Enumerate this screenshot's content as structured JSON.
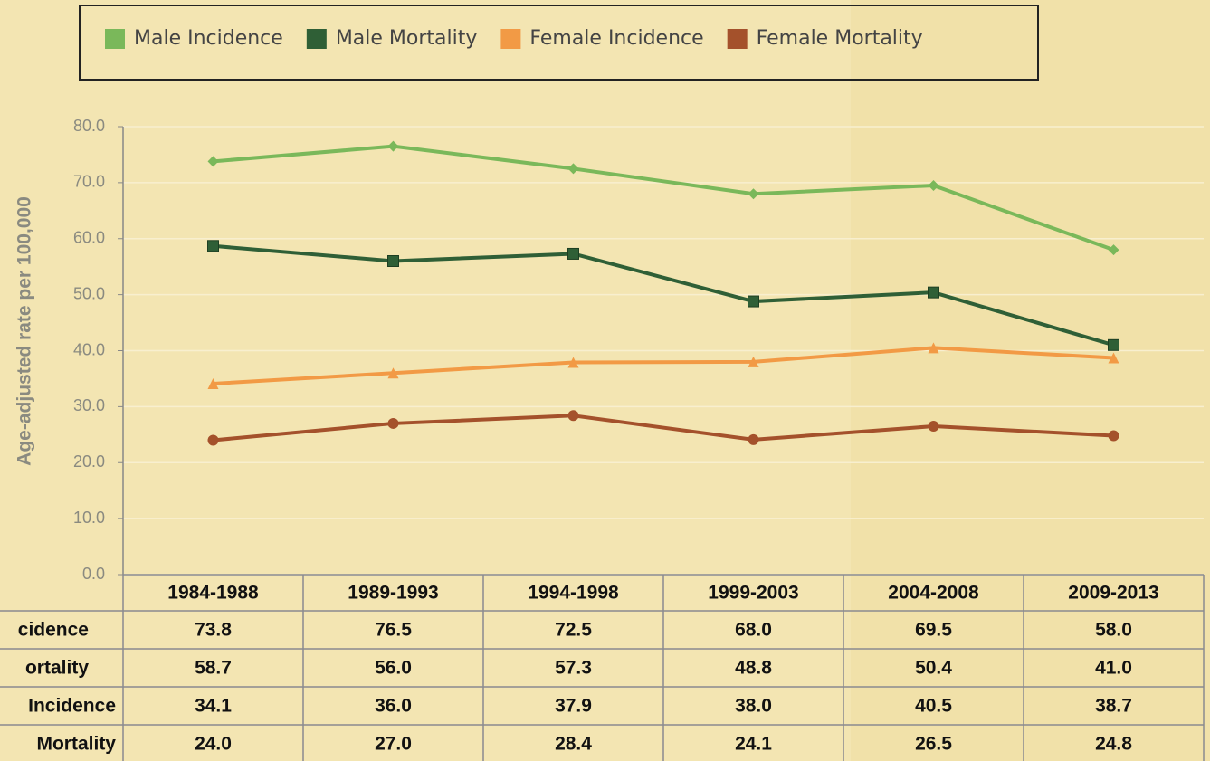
{
  "chart_data": {
    "type": "line",
    "y_label": "Age-adjusted rate per 100,000",
    "categories": [
      "1984-1988",
      "1989-1993",
      "1994-1998",
      "1999-2003",
      "2004-2008",
      "2009-2013"
    ],
    "ylim": [
      0,
      80
    ],
    "yticks": [
      {
        "value": 0,
        "label": "0.0"
      },
      {
        "value": 10,
        "label": "10.0"
      },
      {
        "value": 20,
        "label": "20.0"
      },
      {
        "value": 30,
        "label": "30.0"
      },
      {
        "value": 40,
        "label": "40.0"
      },
      {
        "value": 50,
        "label": "50.0"
      },
      {
        "value": 60,
        "label": "60.0"
      },
      {
        "value": 70,
        "label": "70.0"
      },
      {
        "value": 80,
        "label": "80.0"
      }
    ],
    "grid": true,
    "series": [
      {
        "name": "Male Incidence",
        "color": "#7ab85a",
        "marker": "diamond",
        "table_label": "cidence",
        "values": [
          73.8,
          76.5,
          72.5,
          68.0,
          69.5,
          58.0
        ],
        "value_labels": [
          "73.8",
          "76.5",
          "72.5",
          "68.0",
          "69.5",
          "58.0"
        ]
      },
      {
        "name": "Male Mortality",
        "color": "#2f5f36",
        "marker": "square",
        "table_label": "ortality",
        "values": [
          58.7,
          56.0,
          57.3,
          48.8,
          50.4,
          41.0
        ],
        "value_labels": [
          "58.7",
          "56.0",
          "57.3",
          "48.8",
          "50.4",
          "41.0"
        ]
      },
      {
        "name": "Female Incidence",
        "color": "#f29a45",
        "marker": "triangle",
        "table_label": "Incidence",
        "values": [
          34.1,
          36.0,
          37.9,
          38.0,
          40.5,
          38.7
        ],
        "value_labels": [
          "34.1",
          "36.0",
          "37.9",
          "38.0",
          "40.5",
          "38.7"
        ]
      },
      {
        "name": "Female Mortality",
        "color": "#a4512b",
        "marker": "circle",
        "table_label": "Mortality",
        "values": [
          24.0,
          27.0,
          28.4,
          24.1,
          26.5,
          24.8
        ],
        "value_labels": [
          "24.0",
          "27.0",
          "28.4",
          "24.1",
          "26.5",
          "24.8"
        ]
      }
    ]
  }
}
